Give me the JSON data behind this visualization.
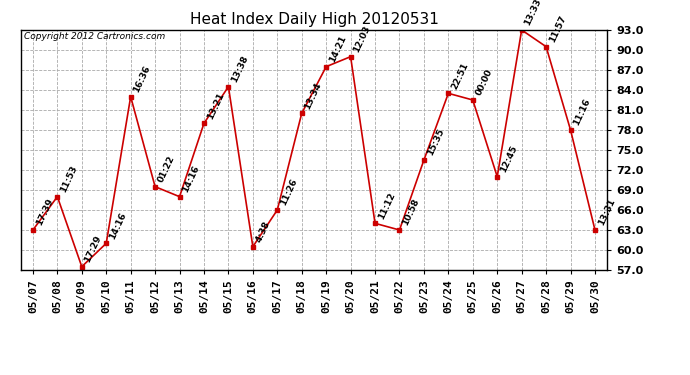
{
  "title": "Heat Index Daily High 20120531",
  "copyright": "Copyright 2012 Cartronics.com",
  "dates": [
    "05/07",
    "05/08",
    "05/09",
    "05/10",
    "05/11",
    "05/12",
    "05/13",
    "05/14",
    "05/15",
    "05/16",
    "05/17",
    "05/18",
    "05/19",
    "05/20",
    "05/21",
    "05/22",
    "05/23",
    "05/24",
    "05/25",
    "05/26",
    "05/27",
    "05/28",
    "05/29",
    "05/30"
  ],
  "values": [
    63.0,
    68.0,
    57.5,
    61.0,
    83.0,
    69.5,
    68.0,
    79.0,
    84.5,
    60.5,
    66.0,
    80.5,
    87.5,
    89.0,
    64.0,
    63.0,
    73.5,
    83.5,
    82.5,
    71.0,
    93.0,
    90.5,
    78.0,
    63.0
  ],
  "times": [
    "17:39",
    "11:53",
    "17:29",
    "14:16",
    "16:36",
    "01:22",
    "14:16",
    "13:21",
    "13:38",
    "4:38",
    "11:26",
    "13:34",
    "14:21",
    "12:03",
    "11:12",
    "10:58",
    "15:35",
    "22:51",
    "00:00",
    "12:45",
    "13:33",
    "11:57",
    "11:16",
    "13:31"
  ],
  "ylim": [
    57.0,
    93.0
  ],
  "yticks": [
    57.0,
    60.0,
    63.0,
    66.0,
    69.0,
    72.0,
    75.0,
    78.0,
    81.0,
    84.0,
    87.0,
    90.0,
    93.0
  ],
  "line_color": "#cc0000",
  "marker_color": "#cc0000",
  "bg_color": "#ffffff",
  "grid_color": "#aaaaaa",
  "title_fontsize": 11,
  "label_fontsize": 8,
  "annotation_fontsize": 6.5
}
